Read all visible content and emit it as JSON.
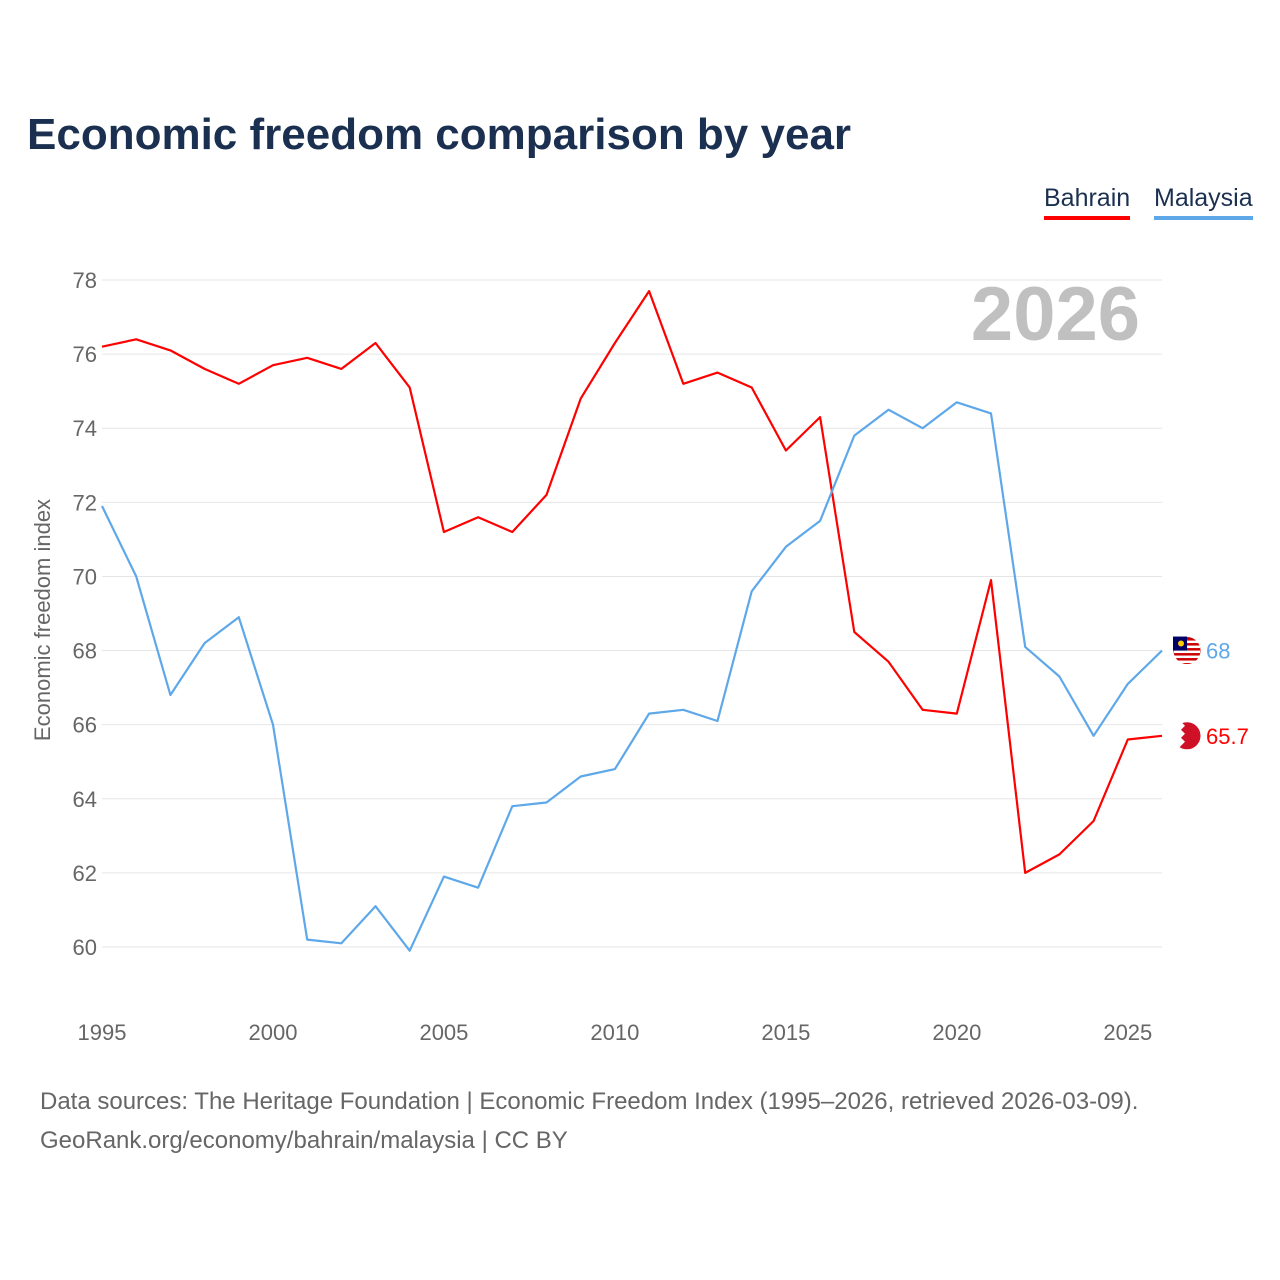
{
  "chart_data": {
    "type": "line",
    "title": "Economic freedom comparison by year",
    "xlabel": "",
    "ylabel": "Economic freedom index",
    "xlim": [
      1995,
      2026
    ],
    "ylim": [
      59,
      78.5
    ],
    "yticks": [
      60,
      62,
      64,
      66,
      68,
      70,
      72,
      74,
      76,
      78
    ],
    "xticks": [
      1995,
      2000,
      2005,
      2010,
      2015,
      2020,
      2025
    ],
    "grid": true,
    "legend_placement": "top-right",
    "year_watermark": "2026",
    "x": [
      1995,
      1996,
      1997,
      1998,
      1999,
      2000,
      2001,
      2002,
      2003,
      2004,
      2005,
      2006,
      2007,
      2008,
      2009,
      2010,
      2011,
      2012,
      2013,
      2014,
      2015,
      2016,
      2017,
      2018,
      2019,
      2020,
      2021,
      2022,
      2023,
      2024,
      2025,
      2026
    ],
    "series": [
      {
        "name": "Bahrain",
        "color": "#ff0000",
        "end_label": "65.7",
        "values": [
          76.2,
          76.4,
          76.1,
          75.6,
          75.2,
          75.7,
          75.9,
          75.6,
          76.3,
          75.1,
          71.2,
          71.6,
          71.2,
          72.2,
          74.8,
          76.3,
          77.7,
          75.2,
          75.5,
          75.1,
          73.4,
          74.3,
          68.5,
          67.7,
          66.4,
          66.3,
          69.9,
          62.0,
          62.5,
          63.4,
          65.6,
          65.7
        ]
      },
      {
        "name": "Malaysia",
        "color": "#5ea8ea",
        "end_label": "68",
        "values": [
          71.9,
          70.0,
          66.8,
          68.2,
          68.9,
          66.0,
          60.2,
          60.1,
          61.1,
          59.9,
          61.9,
          61.6,
          63.8,
          63.9,
          64.6,
          64.8,
          66.3,
          66.4,
          66.1,
          69.6,
          70.8,
          71.5,
          73.8,
          74.5,
          74.0,
          74.7,
          74.4,
          68.1,
          67.3,
          65.7,
          67.1,
          68.0
        ]
      }
    ]
  },
  "footer": {
    "line1": "Data sources: The Heritage Foundation | Economic Freedom Index (1995–2026, retrieved 2026-03-09).",
    "line2": "GeoRank.org/economy/bahrain/malaysia | CC BY"
  }
}
